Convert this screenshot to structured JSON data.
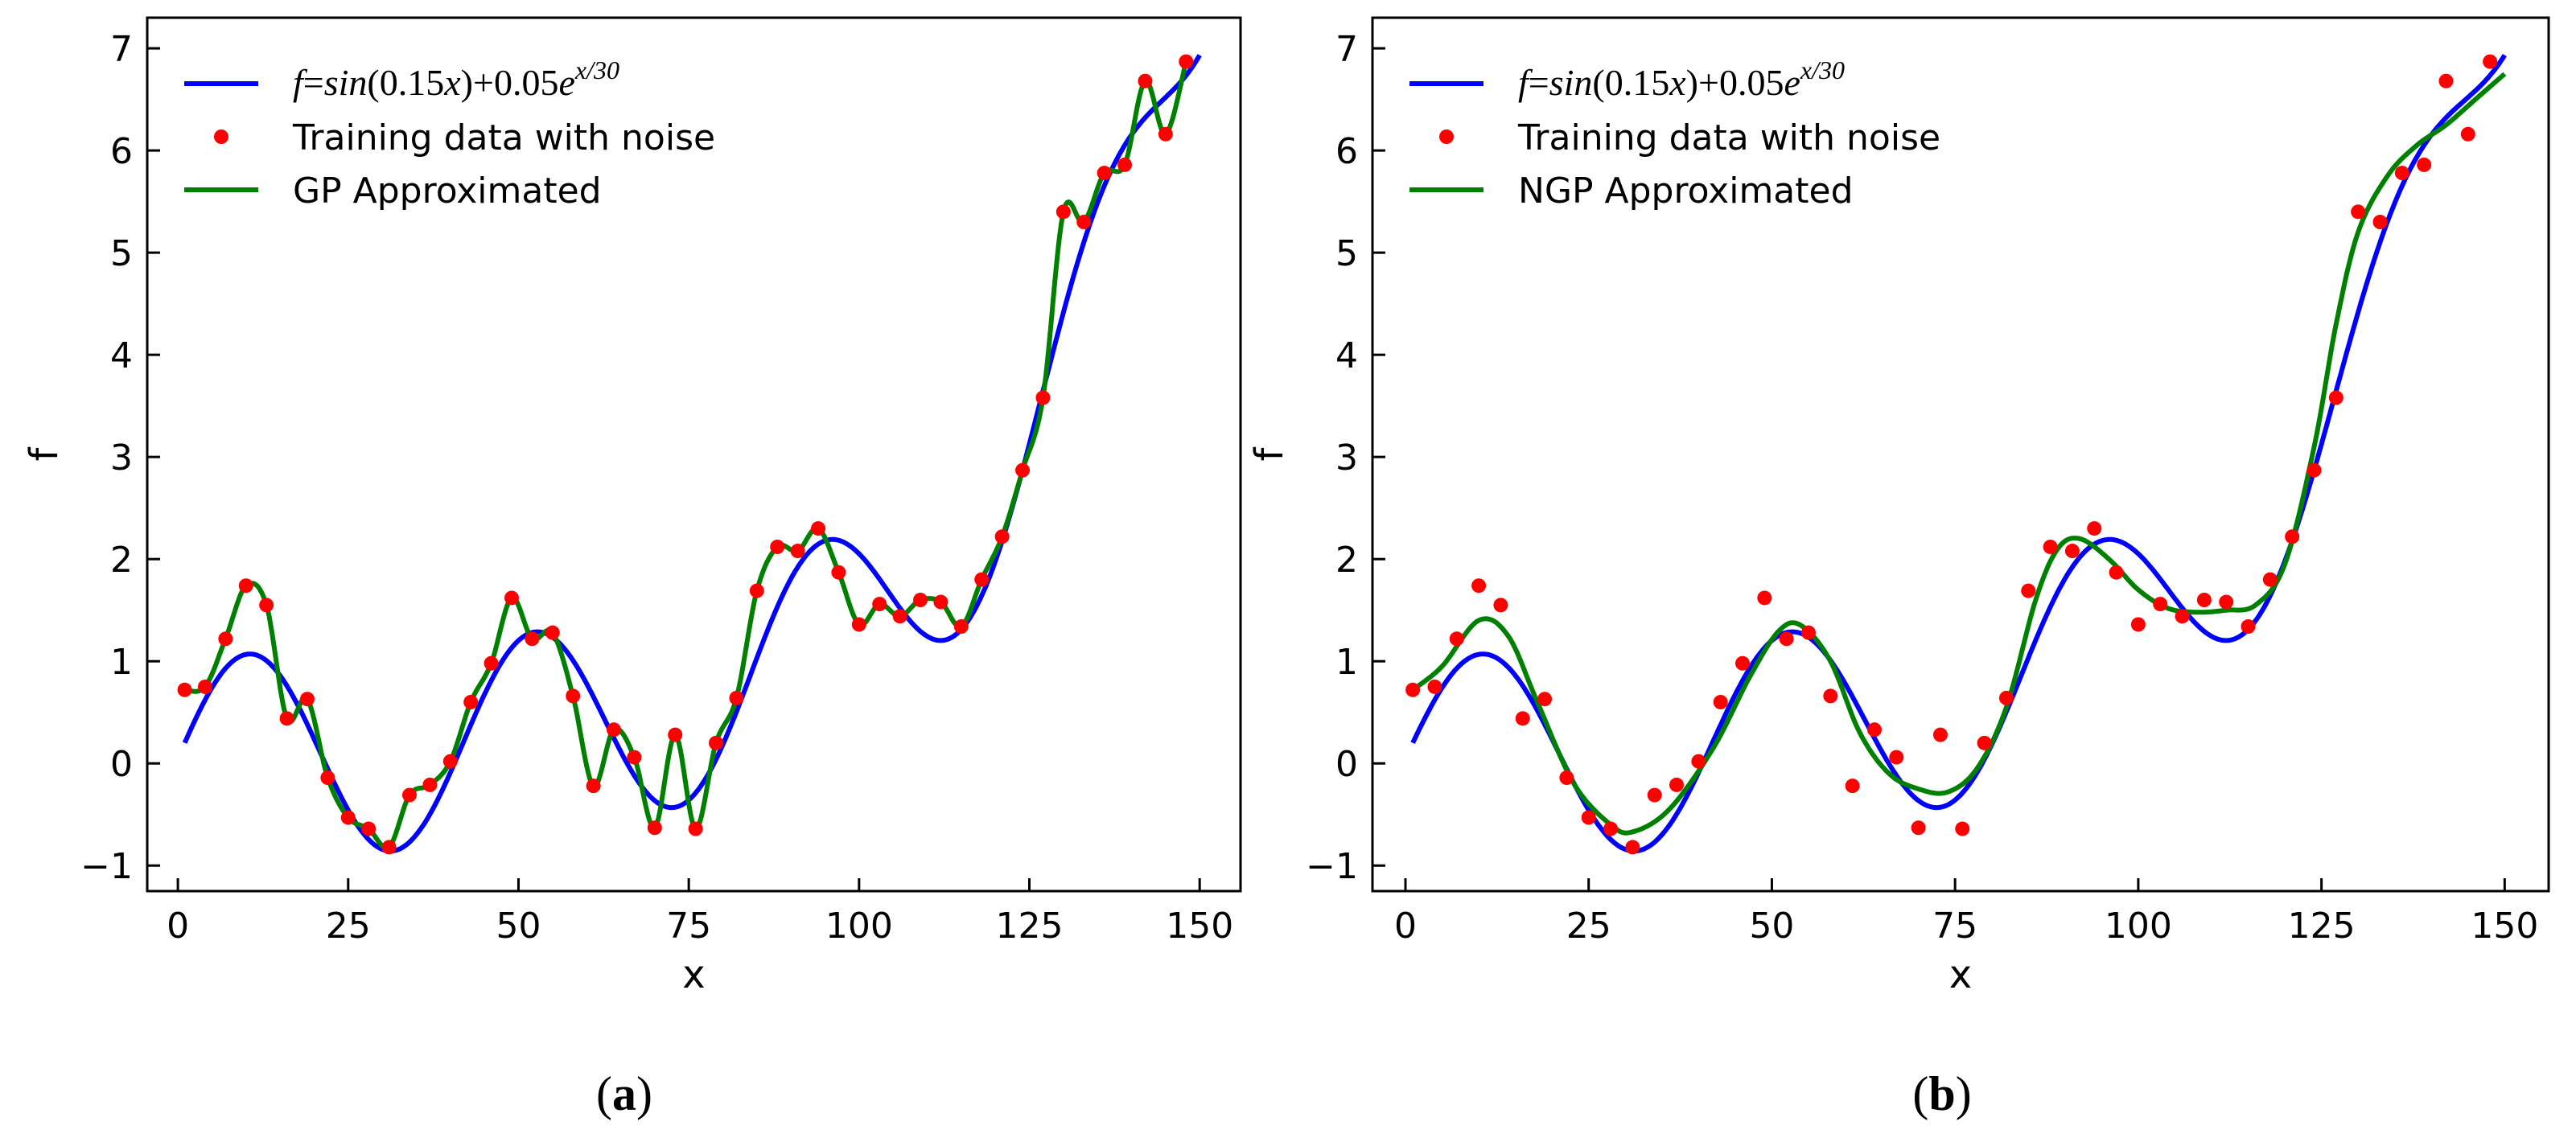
{
  "chart_data": [
    {
      "type": "line",
      "panel_label": "(a)",
      "xlabel": "x",
      "ylabel": "f",
      "xlim": [
        -4.5,
        156
      ],
      "ylim": [
        -1.25,
        7.3
      ],
      "xticks": [
        0,
        25,
        50,
        75,
        100,
        125,
        150
      ],
      "yticks": [
        -1,
        0,
        1,
        2,
        3,
        4,
        5,
        6,
        7
      ],
      "legend_position": "top-left",
      "grid": false,
      "series": [
        {
          "name": "f=sin(0.15x)+0.05e^{x/30}",
          "kind": "line",
          "color": "#0000ff",
          "function": "sin(0.15x)+0.05exp(x/30)",
          "x_range": [
            1,
            150
          ],
          "formula_parts": {
            "prefix": "f",
            "eq": "=",
            "sin": "sin",
            "arg": "(0.15",
            "var": "x",
            "close": ")",
            "plus": "+",
            "coef": "0.05",
            "base": "e",
            "exponent": "x/30"
          }
        },
        {
          "name": "Training data with noise",
          "kind": "scatter",
          "color": "#ff0000",
          "points": [
            [
              1,
              0.72
            ],
            [
              4,
              0.75
            ],
            [
              7,
              1.22
            ],
            [
              10,
              1.74
            ],
            [
              13,
              1.55
            ],
            [
              16,
              0.44
            ],
            [
              19,
              0.63
            ],
            [
              22,
              -0.14
            ],
            [
              25,
              -0.53
            ],
            [
              28,
              -0.64
            ],
            [
              31,
              -0.82
            ],
            [
              34,
              -0.31
            ],
            [
              37,
              -0.21
            ],
            [
              40,
              0.02
            ],
            [
              43,
              0.6
            ],
            [
              46,
              0.98
            ],
            [
              49,
              1.62
            ],
            [
              52,
              1.22
            ],
            [
              55,
              1.28
            ],
            [
              58,
              0.66
            ],
            [
              61,
              -0.22
            ],
            [
              64,
              0.33
            ],
            [
              67,
              0.06
            ],
            [
              70,
              -0.63
            ],
            [
              73,
              0.28
            ],
            [
              76,
              -0.64
            ],
            [
              79,
              0.2
            ],
            [
              82,
              0.64
            ],
            [
              85,
              1.69
            ],
            [
              88,
              2.12
            ],
            [
              91,
              2.08
            ],
            [
              94,
              2.3
            ],
            [
              97,
              1.87
            ],
            [
              100,
              1.36
            ],
            [
              103,
              1.56
            ],
            [
              106,
              1.44
            ],
            [
              109,
              1.6
            ],
            [
              112,
              1.58
            ],
            [
              115,
              1.34
            ],
            [
              118,
              1.8
            ],
            [
              121,
              2.22
            ],
            [
              124,
              2.87
            ],
            [
              127,
              3.58
            ],
            [
              130,
              5.4
            ],
            [
              133,
              5.3
            ],
            [
              136,
              5.78
            ],
            [
              139,
              5.86
            ],
            [
              142,
              6.68
            ],
            [
              145,
              6.16
            ],
            [
              148,
              6.87
            ]
          ]
        },
        {
          "name": "GP Approximated",
          "kind": "line",
          "color": "#008000",
          "method": "interpolation through training data"
        }
      ]
    },
    {
      "type": "line",
      "panel_label": "(b)",
      "xlabel": "x",
      "ylabel": "f",
      "xlim": [
        -4.5,
        156
      ],
      "ylim": [
        -1.25,
        7.3
      ],
      "xticks": [
        0,
        25,
        50,
        75,
        100,
        125,
        150
      ],
      "yticks": [
        -1,
        0,
        1,
        2,
        3,
        4,
        5,
        6,
        7
      ],
      "legend_position": "top-left",
      "grid": false,
      "series": [
        {
          "name": "f=sin(0.15x)+0.05e^{x/30}",
          "kind": "line",
          "color": "#0000ff",
          "function": "sin(0.15x)+0.05exp(x/30)",
          "x_range": [
            1,
            150
          ],
          "formula_parts": {
            "prefix": "f",
            "eq": "=",
            "sin": "sin",
            "arg": "(0.15",
            "var": "x",
            "close": ")",
            "plus": "+",
            "coef": "0.05",
            "base": "e",
            "exponent": "x/30"
          }
        },
        {
          "name": "Training data with noise",
          "kind": "scatter",
          "color": "#ff0000",
          "points": [
            [
              1,
              0.72
            ],
            [
              4,
              0.75
            ],
            [
              7,
              1.22
            ],
            [
              10,
              1.74
            ],
            [
              13,
              1.55
            ],
            [
              16,
              0.44
            ],
            [
              19,
              0.63
            ],
            [
              22,
              -0.14
            ],
            [
              25,
              -0.53
            ],
            [
              28,
              -0.64
            ],
            [
              31,
              -0.82
            ],
            [
              34,
              -0.31
            ],
            [
              37,
              -0.21
            ],
            [
              40,
              0.02
            ],
            [
              43,
              0.6
            ],
            [
              46,
              0.98
            ],
            [
              49,
              1.62
            ],
            [
              52,
              1.22
            ],
            [
              55,
              1.28
            ],
            [
              58,
              0.66
            ],
            [
              61,
              -0.22
            ],
            [
              64,
              0.33
            ],
            [
              67,
              0.06
            ],
            [
              70,
              -0.63
            ],
            [
              73,
              0.28
            ],
            [
              76,
              -0.64
            ],
            [
              79,
              0.2
            ],
            [
              82,
              0.64
            ],
            [
              85,
              1.69
            ],
            [
              88,
              2.12
            ],
            [
              91,
              2.08
            ],
            [
              94,
              2.3
            ],
            [
              97,
              1.87
            ],
            [
              100,
              1.36
            ],
            [
              103,
              1.56
            ],
            [
              106,
              1.44
            ],
            [
              109,
              1.6
            ],
            [
              112,
              1.58
            ],
            [
              115,
              1.34
            ],
            [
              118,
              1.8
            ],
            [
              121,
              2.22
            ],
            [
              124,
              2.87
            ],
            [
              127,
              3.58
            ],
            [
              130,
              5.4
            ],
            [
              133,
              5.3
            ],
            [
              136,
              5.78
            ],
            [
              139,
              5.86
            ],
            [
              142,
              6.68
            ],
            [
              145,
              6.16
            ],
            [
              148,
              6.87
            ]
          ]
        },
        {
          "name": "NGP Approximated",
          "kind": "line",
          "color": "#008000",
          "points": [
            [
              1,
              0.72
            ],
            [
              5,
              0.95
            ],
            [
              10,
              1.4
            ],
            [
              14,
              1.25
            ],
            [
              18,
              0.6
            ],
            [
              23,
              -0.2
            ],
            [
              28,
              -0.6
            ],
            [
              31,
              -0.67
            ],
            [
              36,
              -0.45
            ],
            [
              42,
              0.15
            ],
            [
              47,
              0.85
            ],
            [
              51,
              1.3
            ],
            [
              54,
              1.35
            ],
            [
              58,
              1.0
            ],
            [
              62,
              0.3
            ],
            [
              66,
              -0.1
            ],
            [
              70,
              -0.25
            ],
            [
              74,
              -0.28
            ],
            [
              78,
              -0.05
            ],
            [
              82,
              0.55
            ],
            [
              86,
              1.6
            ],
            [
              89,
              2.1
            ],
            [
              92,
              2.2
            ],
            [
              96,
              2.0
            ],
            [
              100,
              1.7
            ],
            [
              104,
              1.52
            ],
            [
              108,
              1.48
            ],
            [
              112,
              1.5
            ],
            [
              116,
              1.55
            ],
            [
              120,
              1.95
            ],
            [
              124,
              3.1
            ],
            [
              127,
              4.3
            ],
            [
              130,
              5.2
            ],
            [
              134,
              5.75
            ],
            [
              138,
              6.05
            ],
            [
              142,
              6.25
            ],
            [
              146,
              6.5
            ],
            [
              150,
              6.75
            ]
          ]
        }
      ]
    }
  ]
}
